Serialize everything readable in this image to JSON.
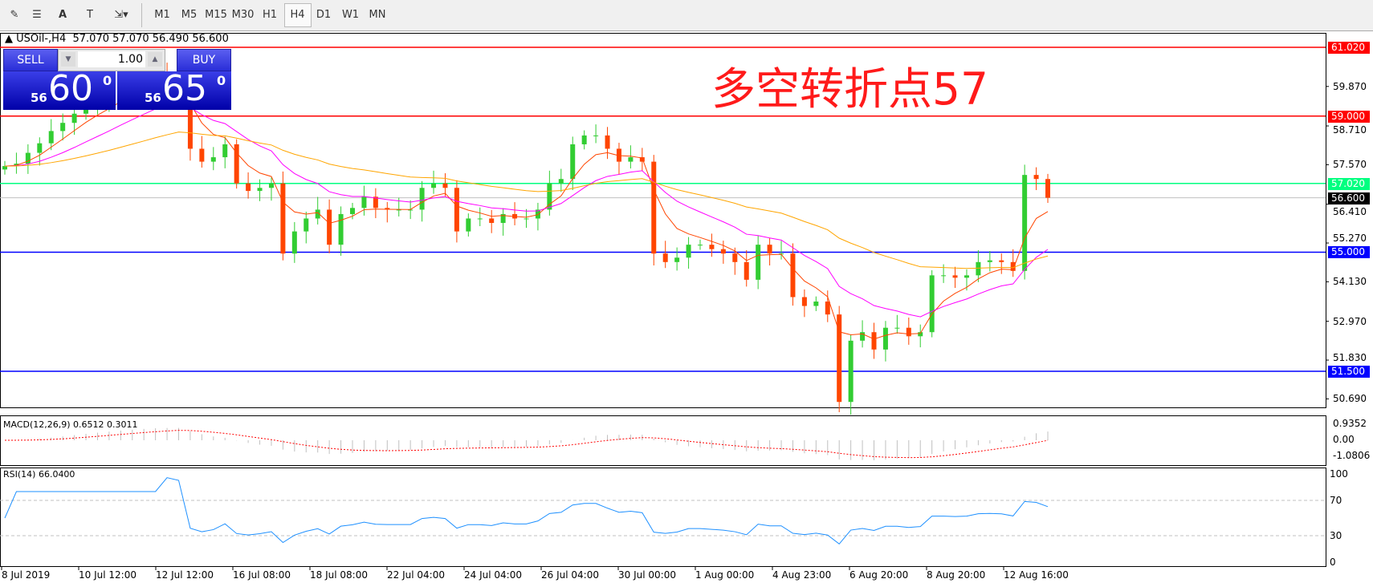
{
  "toolbar": {
    "tools": [
      "line-studies-icon",
      "fibonacci-icon",
      "text-icon",
      "text-label-icon",
      "arrows-icon"
    ],
    "timeframes": [
      "M1",
      "M5",
      "M15",
      "M30",
      "H1",
      "H4",
      "D1",
      "W1",
      "MN"
    ],
    "selected": "H4"
  },
  "header": {
    "symbol": "USOil-,H4",
    "ohlc": "57.070 57.070 56.490 56.600"
  },
  "trade": {
    "sell_label": "SELL",
    "buy_label": "BUY",
    "lots": "1.00",
    "sell_small": "56",
    "sell_big": "60",
    "sell_sup": "0",
    "buy_small": "56",
    "buy_big": "65",
    "buy_sup": "0",
    "color": "#1a1ad0"
  },
  "annotation": "多空转折点57",
  "price_axis": [
    "59.870",
    "58.710",
    "57.570",
    "56.410",
    "55.270",
    "54.130",
    "52.970",
    "51.830",
    "50.690"
  ],
  "levels": [
    {
      "price": 61.02,
      "label": "61.020",
      "color": "#ff0000"
    },
    {
      "price": 59.0,
      "label": "59.000",
      "color": "#ff0000"
    },
    {
      "price": 57.02,
      "label": "57.020",
      "color": "#00ff80"
    },
    {
      "price": 55.0,
      "label": "55.000",
      "color": "#0000ff"
    },
    {
      "price": 51.5,
      "label": "51.500",
      "color": "#0000ff"
    },
    {
      "price": 56.6,
      "label": "56.600",
      "color": "#000000"
    }
  ],
  "macd": {
    "label": "MACD(12,26,9) 0.6512 0.3011",
    "axis": [
      "0.9352",
      "0.00",
      "-1.0806"
    ]
  },
  "rsi": {
    "label": "RSI(14) 66.0400",
    "axis": [
      "100",
      "70",
      "30",
      "0"
    ]
  },
  "time_axis": [
    "8 Jul 2019",
    "10 Jul 12:00",
    "12 Jul 12:00",
    "16 Jul 08:00",
    "18 Jul 08:00",
    "22 Jul 04:00",
    "24 Jul 04:00",
    "26 Jul 04:00",
    "30 Jul 00:00",
    "1 Aug 00:00",
    "4 Aug 23:00",
    "6 Aug 20:00",
    "8 Aug 20:00",
    "12 Aug 16:00"
  ],
  "chart_data": {
    "type": "candlestick",
    "bull_color": "#32cd32",
    "bear_color": "#ff4500",
    "closes": [
      57.53,
      57.6,
      57.92,
      58.2,
      58.56,
      58.8,
      59.07,
      59.3,
      59.45,
      59.6,
      59.84,
      59.95,
      60.1,
      60.22,
      60.15,
      60.1,
      58.04,
      57.66,
      57.79,
      58.17,
      57.02,
      56.8,
      56.89,
      57.02,
      54.96,
      55.61,
      55.99,
      56.25,
      55.22,
      56.12,
      56.3,
      56.63,
      56.3,
      56.25,
      56.25,
      56.25,
      56.89,
      57.02,
      56.89,
      55.61,
      55.99,
      55.99,
      55.86,
      56.12,
      55.99,
      55.99,
      56.25,
      57.02,
      57.15,
      58.17,
      58.43,
      58.43,
      58.04,
      57.66,
      57.79,
      57.66,
      54.96,
      54.71,
      54.84,
      55.22,
      55.22,
      55.09,
      54.96,
      54.71,
      54.19,
      55.22,
      54.96,
      54.96,
      53.68,
      53.42,
      53.55,
      53.17,
      50.6,
      52.4,
      52.65,
      52.14,
      52.78,
      52.78,
      52.53,
      52.65,
      54.32,
      54.32,
      54.25,
      54.32,
      54.71,
      54.76,
      54.71,
      54.45,
      57.27,
      57.15,
      56.6
    ],
    "ma_colors": [
      "#ff4500",
      "#ff00ff",
      "#ffa500"
    ]
  }
}
